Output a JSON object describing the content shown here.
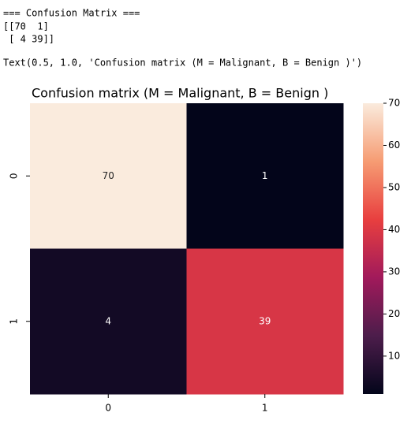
{
  "console": {
    "lines": [
      "=== Confusion Matrix ===",
      "[[70  1]",
      " [ 4 39]]",
      "Text(0.5, 1.0, 'Confusion matrix (M = Malignant, B = Benign )')"
    ]
  },
  "chart_data": {
    "type": "heatmap",
    "title": "Confusion matrix (M = Malignant, B = Benign )",
    "x_categories": [
      "0",
      "1"
    ],
    "y_categories": [
      "0",
      "1"
    ],
    "values": [
      [
        70,
        1
      ],
      [
        4,
        39
      ]
    ],
    "clim": [
      1,
      70
    ],
    "cticks": [
      10,
      20,
      30,
      40,
      50,
      60,
      70
    ],
    "colormap": [
      "#03051a",
      "#4c1d4b",
      "#a11a5b",
      "#e83f3f",
      "#f69c73",
      "#faebdd"
    ]
  }
}
